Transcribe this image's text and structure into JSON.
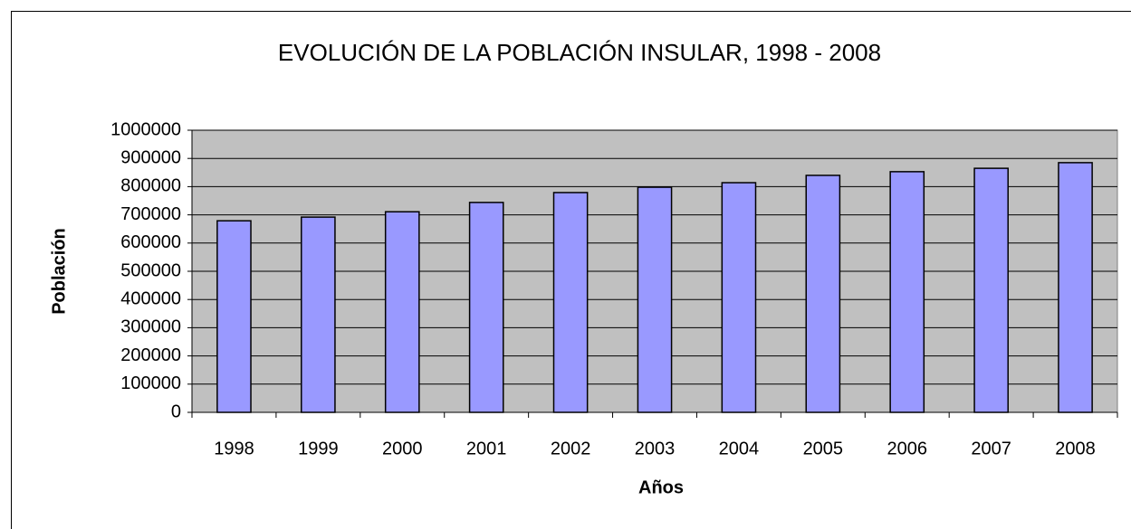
{
  "chart_data": {
    "type": "bar",
    "title": "EVOLUCIÓN DE LA POBLACIÓN INSULAR, 1998 - 2008",
    "x_label": "Años",
    "y_label": "Población",
    "categories": [
      "1998",
      "1999",
      "2000",
      "2001",
      "2002",
      "2003",
      "2004",
      "2005",
      "2006",
      "2007",
      "2008"
    ],
    "values": [
      679000,
      692000,
      711000,
      744000,
      779000,
      798000,
      814000,
      840000,
      853000,
      865000,
      885000
    ],
    "color": "#9999ff",
    "ylim": [
      0,
      1000000
    ],
    "yticks": [
      0,
      100000,
      200000,
      300000,
      400000,
      500000,
      600000,
      700000,
      800000,
      900000,
      1000000
    ],
    "grid": true
  }
}
